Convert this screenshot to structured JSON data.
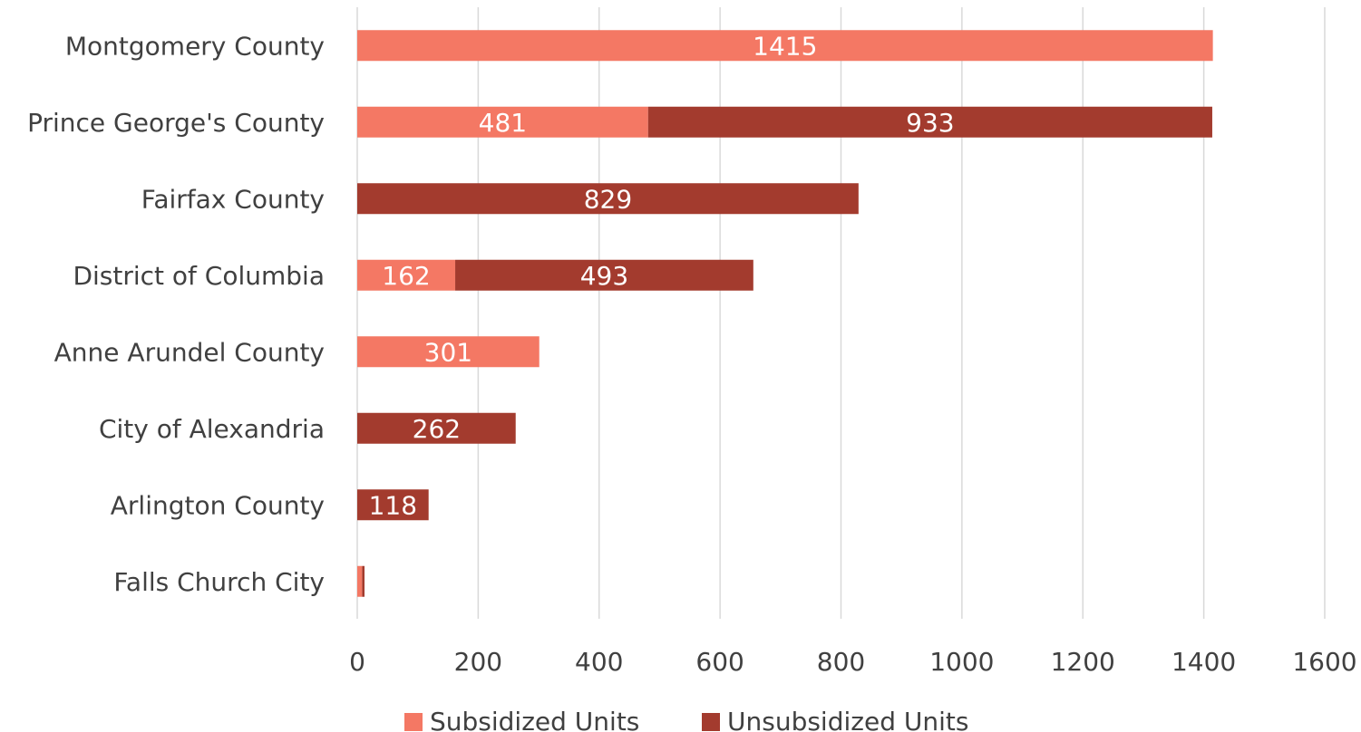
{
  "chart_data": {
    "type": "bar",
    "orientation": "horizontal",
    "stacked": true,
    "categories": [
      "Montgomery County",
      "Prince George's County",
      "Fairfax County",
      "District of Columbia",
      "Anne Arundel County",
      "City of Alexandria",
      "Arlington County",
      "Falls Church City"
    ],
    "series": [
      {
        "name": "Subsidized Units",
        "color": "#f47864",
        "values": [
          1415,
          481,
          0,
          162,
          301,
          0,
          0,
          8
        ],
        "labels": [
          "1415",
          "481",
          "",
          "162",
          "301",
          "",
          "",
          ""
        ]
      },
      {
        "name": "Unsubsidized Units",
        "color": "#a33b2e",
        "values": [
          0,
          933,
          829,
          493,
          0,
          262,
          118,
          4
        ],
        "labels": [
          "",
          "933",
          "829",
          "493",
          "",
          "262",
          "118",
          ""
        ]
      }
    ],
    "xlim": [
      0,
      1600
    ],
    "x_ticks": [
      "0",
      "200",
      "400",
      "600",
      "800",
      "1000",
      "1200",
      "1400",
      "1600"
    ],
    "grid": true,
    "legend_position": "bottom"
  }
}
